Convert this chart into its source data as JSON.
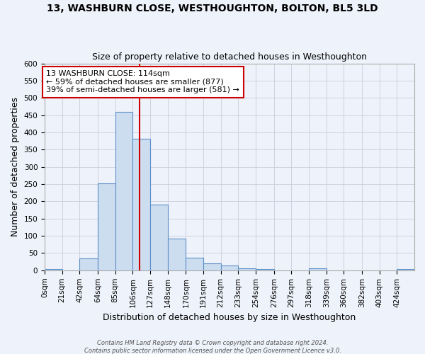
{
  "title": "13, WASHBURN CLOSE, WESTHOUGHTON, BOLTON, BL5 3LD",
  "subtitle": "Size of property relative to detached houses in Westhoughton",
  "xlabel": "Distribution of detached houses by size in Westhoughton",
  "ylabel": "Number of detached properties",
  "bin_labels": [
    "0sqm",
    "21sqm",
    "42sqm",
    "64sqm",
    "85sqm",
    "106sqm",
    "127sqm",
    "148sqm",
    "170sqm",
    "191sqm",
    "212sqm",
    "233sqm",
    "254sqm",
    "276sqm",
    "297sqm",
    "318sqm",
    "339sqm",
    "360sqm",
    "382sqm",
    "403sqm",
    "424sqm"
  ],
  "bin_edges": [
    0,
    21,
    42,
    64,
    85,
    106,
    127,
    148,
    170,
    191,
    212,
    233,
    254,
    276,
    297,
    318,
    339,
    360,
    382,
    403,
    424,
    445
  ],
  "counts": [
    4,
    0,
    35,
    253,
    460,
    381,
    191,
    91,
    37,
    20,
    13,
    5,
    4,
    0,
    0,
    5,
    0,
    0,
    0,
    0,
    4
  ],
  "bar_facecolor": "#cdddf0",
  "bar_edgecolor": "#5b8fc9",
  "red_line_x": 114,
  "annotation_lines": [
    "13 WASHBURN CLOSE: 114sqm",
    "← 59% of detached houses are smaller (877)",
    "39% of semi-detached houses are larger (581) →"
  ],
  "annotation_box_edgecolor": "#cc0000",
  "annotation_box_facecolor": "#ffffff",
  "red_line_color": "#cc0000",
  "ylim": [
    0,
    600
  ],
  "yticks": [
    0,
    50,
    100,
    150,
    200,
    250,
    300,
    350,
    400,
    450,
    500,
    550,
    600
  ],
  "title_fontsize": 10,
  "subtitle_fontsize": 9,
  "axis_label_fontsize": 9,
  "tick_fontsize": 7.5,
  "footnote1": "Contains HM Land Registry data © Crown copyright and database right 2024.",
  "footnote2": "Contains public sector information licensed under the Open Government Licence v3.0.",
  "grid_color": "#ccccdd",
  "bg_color": "#eef2fa"
}
